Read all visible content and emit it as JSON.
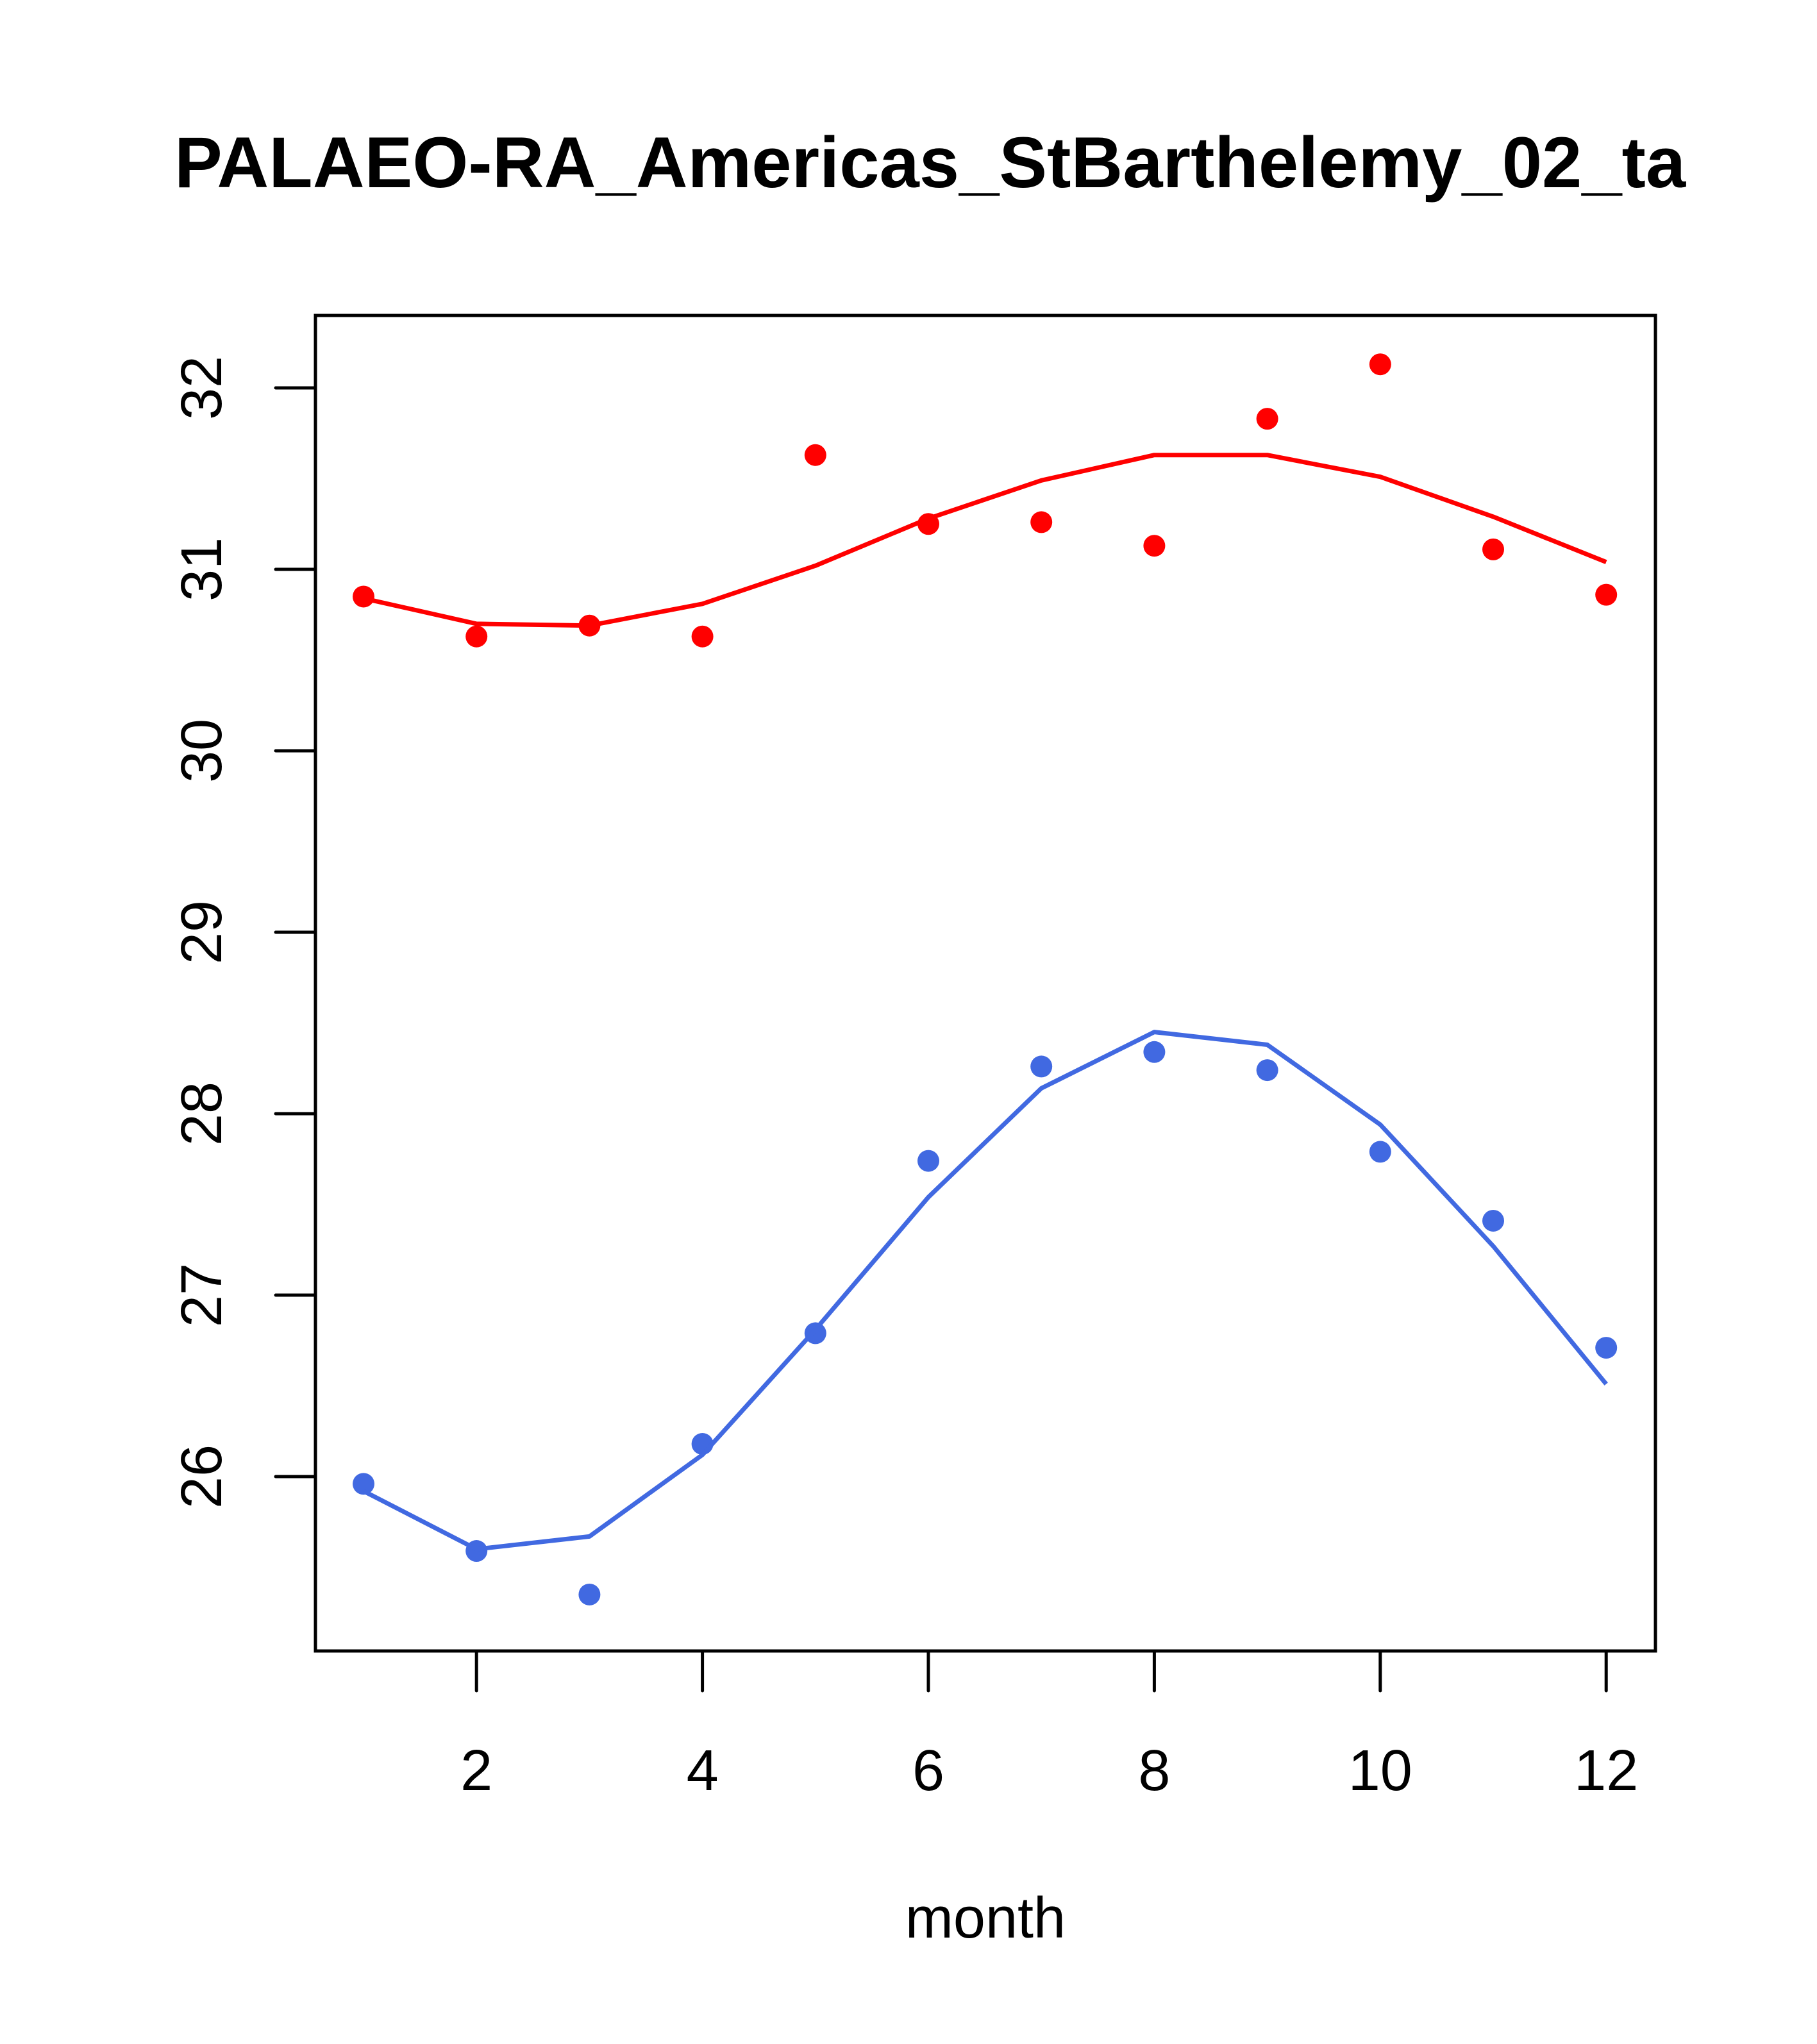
{
  "chart_data": {
    "type": "scatter",
    "title": "PALAEO-RA_Americas_StBarthelemy_02_ta",
    "xlabel": "month",
    "ylabel": "",
    "xlim": [
      0.55,
      12.45
    ],
    "ylim": [
      25.1,
      32.4
    ],
    "xticks": [
      2,
      4,
      6,
      8,
      10,
      12
    ],
    "xtick_labels": [
      "2",
      "4",
      "6",
      "8",
      "10",
      "12"
    ],
    "yticks": [
      26,
      27,
      28,
      29,
      30,
      31,
      32
    ],
    "ytick_labels": [
      "26",
      "27",
      "28",
      "29",
      "30",
      "31",
      "32"
    ],
    "grid": false,
    "x": [
      1,
      2,
      3,
      4,
      5,
      6,
      7,
      8,
      9,
      10,
      11,
      12
    ],
    "series": [
      {
        "name": "max points",
        "kind": "points",
        "color": "#ff0000",
        "values": [
          30.85,
          30.63,
          30.69,
          30.63,
          31.63,
          31.25,
          31.26,
          31.13,
          31.83,
          32.13,
          31.11,
          30.86
        ]
      },
      {
        "name": "max line",
        "kind": "line",
        "color": "#ff0000",
        "values": [
          30.84,
          30.7,
          30.69,
          30.81,
          31.02,
          31.28,
          31.49,
          31.63,
          31.63,
          31.51,
          31.29,
          31.04
        ]
      },
      {
        "name": "min points",
        "kind": "points",
        "color": "#4169e1",
        "values": [
          25.96,
          25.59,
          25.35,
          26.18,
          26.79,
          27.74,
          28.26,
          28.34,
          28.24,
          27.79,
          27.41,
          26.71
        ]
      },
      {
        "name": "min line",
        "kind": "line",
        "color": "#4169e1",
        "values": [
          25.92,
          25.6,
          25.67,
          26.12,
          26.81,
          27.54,
          28.14,
          28.45,
          28.38,
          27.94,
          27.27,
          26.51
        ]
      }
    ]
  }
}
